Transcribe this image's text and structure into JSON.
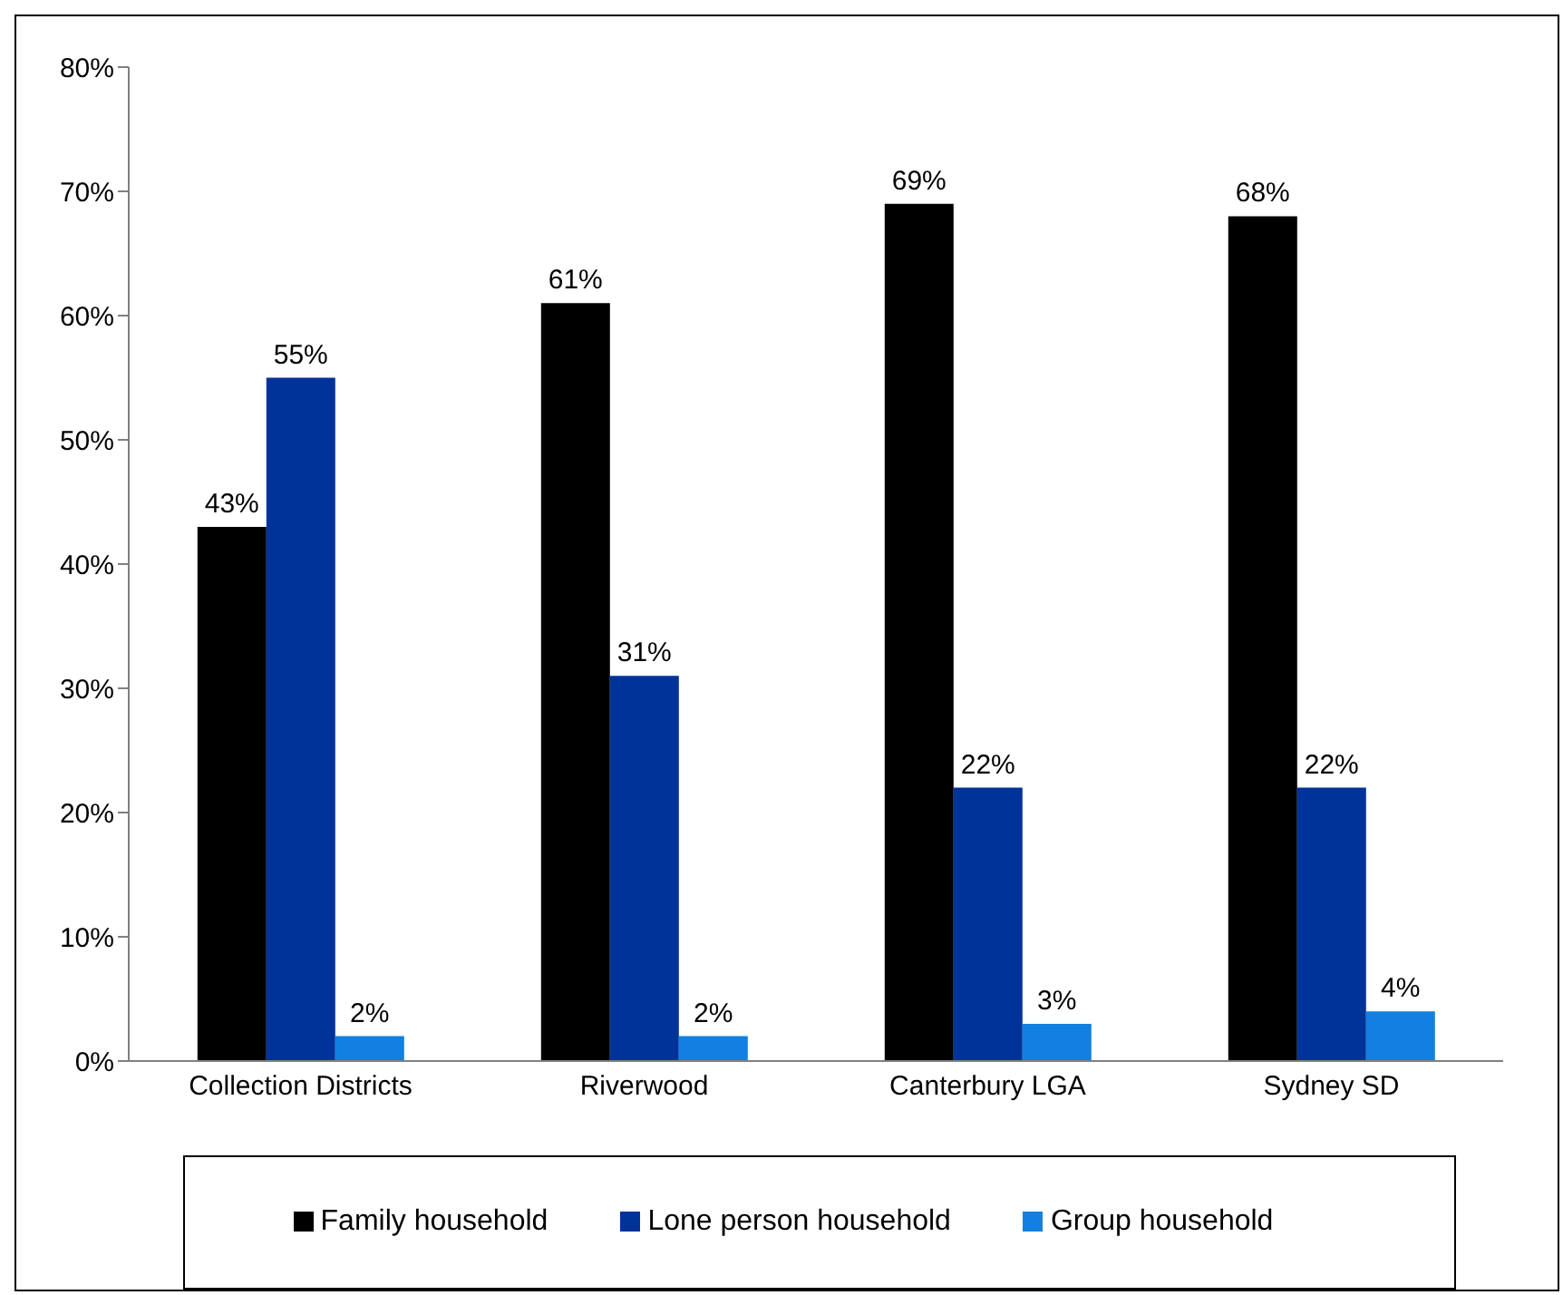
{
  "chart_data": {
    "type": "bar",
    "categories": [
      "Collection Districts",
      "Riverwood",
      "Canterbury LGA",
      "Sydney SD"
    ],
    "series": [
      {
        "name": "Family household",
        "color": "#000000",
        "values": [
          43,
          61,
          69,
          68
        ],
        "value_labels": [
          "43%",
          "61%",
          "69%",
          "68%"
        ]
      },
      {
        "name": "Lone person household",
        "color": "#003399",
        "values": [
          55,
          31,
          22,
          22
        ],
        "value_labels": [
          "55%",
          "31%",
          "22%",
          "22%"
        ]
      },
      {
        "name": "Group household",
        "color": "#1180e0",
        "values": [
          2,
          2,
          3,
          4
        ],
        "value_labels": [
          "2%",
          "2%",
          "3%",
          "4%"
        ]
      }
    ],
    "ylim": [
      0,
      80
    ],
    "yticks": [
      {
        "value": 0,
        "label": "0%"
      },
      {
        "value": 10,
        "label": "10%"
      },
      {
        "value": 20,
        "label": "20%"
      },
      {
        "value": 30,
        "label": "30%"
      },
      {
        "value": 40,
        "label": "40%"
      },
      {
        "value": 50,
        "label": "50%"
      },
      {
        "value": 60,
        "label": "60%"
      },
      {
        "value": 70,
        "label": "70%"
      },
      {
        "value": 80,
        "label": "80%"
      }
    ],
    "grid": false,
    "legend": "bottom"
  }
}
